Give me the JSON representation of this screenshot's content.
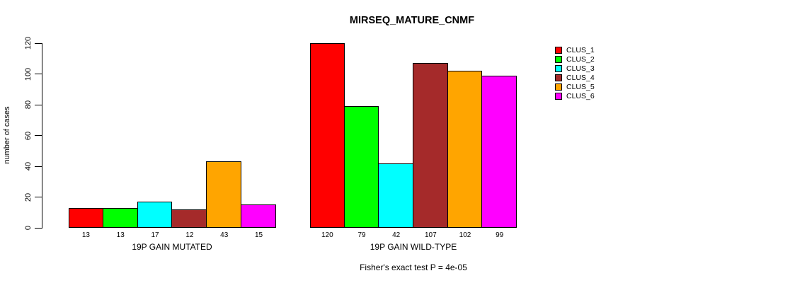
{
  "chart_data": {
    "type": "bar",
    "title": "MIRSEQ_MATURE_CNMF",
    "ylabel": "number of cases",
    "xlabel": "",
    "ylim": [
      0,
      120
    ],
    "yticks": [
      0,
      20,
      40,
      60,
      80,
      100,
      120
    ],
    "grid": false,
    "legend_position": "right-outside",
    "categories": [
      "19P GAIN MUTATED",
      "19P GAIN WILD-TYPE"
    ],
    "series": [
      {
        "name": "CLUS_1",
        "color": "#FF0000",
        "values": [
          13,
          120
        ]
      },
      {
        "name": "CLUS_2",
        "color": "#00FF00",
        "values": [
          13,
          79
        ]
      },
      {
        "name": "CLUS_3",
        "color": "#00FFFF",
        "values": [
          17,
          42
        ]
      },
      {
        "name": "CLUS_4",
        "color": "#A52A2A",
        "values": [
          12,
          107
        ]
      },
      {
        "name": "CLUS_5",
        "color": "#FFA500",
        "values": [
          43,
          102
        ]
      },
      {
        "name": "CLUS_6",
        "color": "#FF00FF",
        "values": [
          15,
          99
        ]
      }
    ],
    "bar_value_labels": [
      [
        13,
        13,
        17,
        12,
        43,
        15
      ],
      [
        120,
        79,
        42,
        107,
        102,
        99
      ]
    ],
    "annotation": "Fisher's exact test P = 4e-05"
  }
}
